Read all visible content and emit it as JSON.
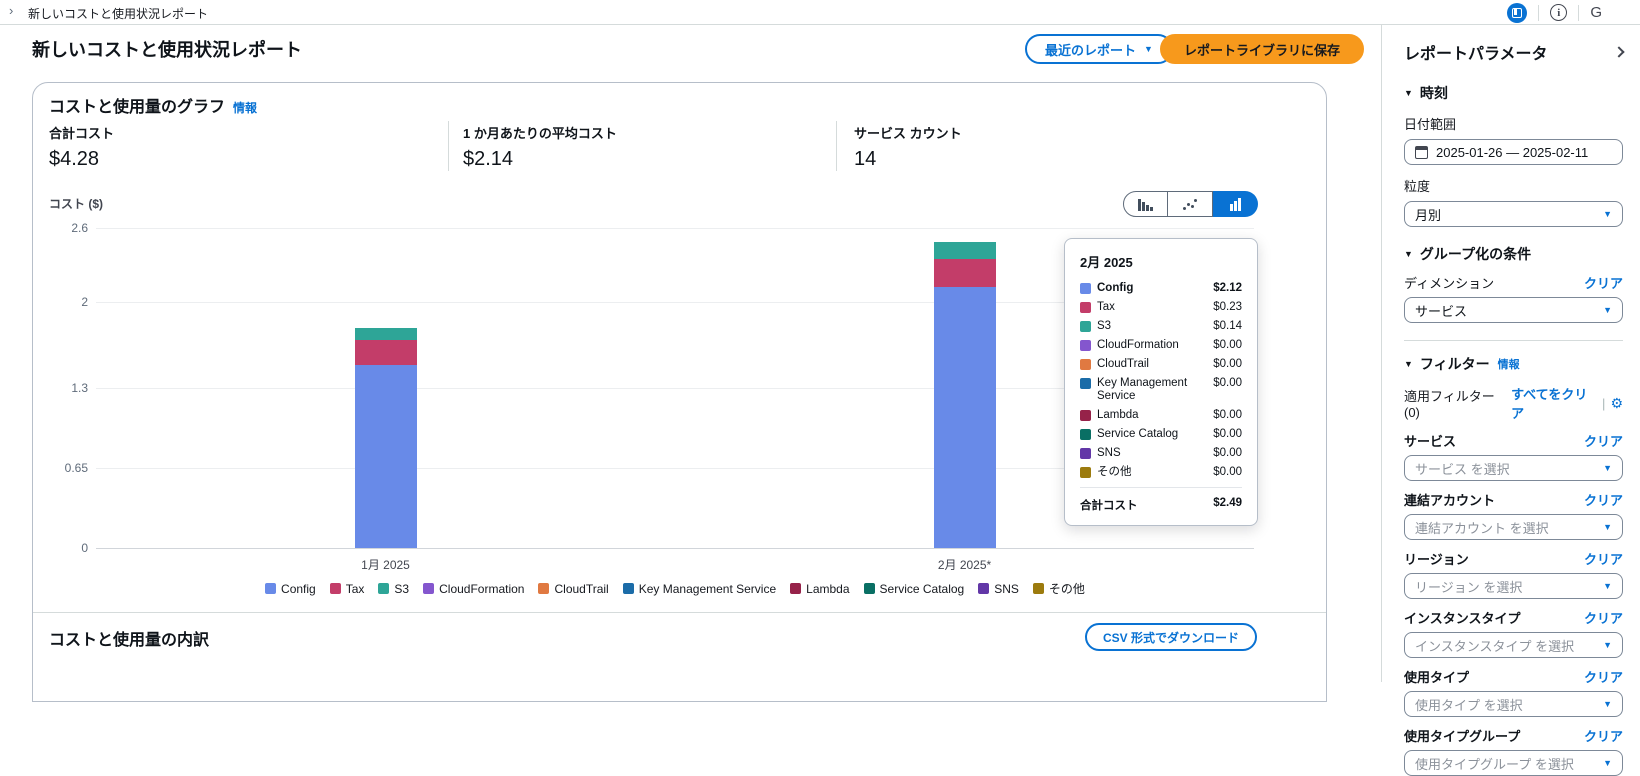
{
  "topbar": {
    "breadcrumb": "新しいコストと使用状況レポート",
    "icons": [
      "panel-toggle-icon",
      "info-icon",
      "globe-icon"
    ]
  },
  "header": {
    "title": "新しいコストと使用状況レポート",
    "recent_reports_button": "最近のレポート",
    "save_button": "レポートライブラリに保存"
  },
  "chart_card": {
    "title": "コストと使用量のグラフ",
    "info_link": "情報",
    "metrics": [
      {
        "label": "合計コスト",
        "value": "$4.28"
      },
      {
        "label": "1 か月あたりの平均コスト",
        "value": "$2.14"
      },
      {
        "label": "サービス カウント",
        "value": "14"
      }
    ],
    "axis_title": "コスト ($)",
    "chart_type_toggle": [
      "bar-chart-icon",
      "line-chart-icon",
      "stacked-bar-chart-icon"
    ],
    "selected_chart_type": "stacked-bar"
  },
  "chart_data": {
    "type": "bar",
    "stacked": true,
    "title": "コストと使用量のグラフ",
    "ylabel": "コスト ($)",
    "categories": [
      "1月 2025",
      "2月 2025*"
    ],
    "ylim": [
      0,
      2.6
    ],
    "grid": true,
    "legend_position": "bottom",
    "y_ticks": [
      {
        "v": 0,
        "label": "0"
      },
      {
        "v": 0.65,
        "label": "0.65"
      },
      {
        "v": 1.3,
        "label": "1.3"
      },
      {
        "v": 2,
        "label": "2"
      },
      {
        "v": 2.6,
        "label": "2.6"
      }
    ],
    "series": [
      {
        "name": "Config",
        "color": "#688ae8",
        "values": [
          1.49,
          2.12
        ]
      },
      {
        "name": "Tax",
        "color": "#c33d69",
        "values": [
          0.2,
          0.23
        ]
      },
      {
        "name": "S3",
        "color": "#2ea597",
        "values": [
          0.1,
          0.14
        ]
      },
      {
        "name": "CloudFormation",
        "color": "#8456ce",
        "values": [
          0,
          0
        ]
      },
      {
        "name": "CloudTrail",
        "color": "#e07941",
        "values": [
          0,
          0
        ]
      },
      {
        "name": "Key Management Service",
        "color": "#1b6ca8",
        "values": [
          0,
          0
        ]
      },
      {
        "name": "Lambda",
        "color": "#962249",
        "values": [
          0,
          0
        ]
      },
      {
        "name": "Service Catalog",
        "color": "#096f64",
        "values": [
          0,
          0
        ]
      },
      {
        "name": "SNS",
        "color": "#6237a7",
        "values": [
          0,
          0
        ]
      },
      {
        "name": "その他",
        "color": "#9c7b0e",
        "values": [
          0,
          0
        ]
      }
    ]
  },
  "tooltip": {
    "title": "2月 2025",
    "rows": [
      {
        "name": "Config",
        "value": "$2.12",
        "bold": true
      },
      {
        "name": "Tax",
        "value": "$0.23",
        "bold": false
      },
      {
        "name": "S3",
        "value": "$0.14",
        "bold": false
      },
      {
        "name": "CloudFormation",
        "value": "$0.00",
        "bold": false
      },
      {
        "name": "CloudTrail",
        "value": "$0.00",
        "bold": false
      },
      {
        "name": "Key Management Service",
        "value": "$0.00",
        "bold": false
      },
      {
        "name": "Lambda",
        "value": "$0.00",
        "bold": false
      },
      {
        "name": "Service Catalog",
        "value": "$0.00",
        "bold": false
      },
      {
        "name": "SNS",
        "value": "$0.00",
        "bold": false
      },
      {
        "name": "その他",
        "value": "$0.00",
        "bold": false
      }
    ],
    "total_label": "合計コスト",
    "total_value": "$2.49"
  },
  "breakdown": {
    "title": "コストと使用量の内訳",
    "csv_button": "CSV 形式でダウンロード"
  },
  "sidebar": {
    "title": "レポートパラメータ",
    "time_section": "時刻",
    "date_range_label": "日付範囲",
    "date_range_value": "2025-01-26 — 2025-02-11",
    "granularity_label": "粒度",
    "granularity_value": "月別",
    "group_section": "グループ化の条件",
    "dimension_label": "ディメンション",
    "dimension_value": "サービス",
    "clear_label": "クリア",
    "filter_section": "フィルター",
    "filter_info_link": "情報",
    "applied_filters": "適用フィルター (0)",
    "clear_all_label": "すべてをクリア",
    "filters": [
      {
        "label": "サービス",
        "placeholder": "サービス を選択"
      },
      {
        "label": "連結アカウント",
        "placeholder": "連結アカウント を選択"
      },
      {
        "label": "リージョン",
        "placeholder": "リージョン を選択"
      },
      {
        "label": "インスタンスタイプ",
        "placeholder": "インスタンスタイプ を選択"
      },
      {
        "label": "使用タイプ",
        "placeholder": "使用タイプ を選択"
      },
      {
        "label": "使用タイプグループ",
        "placeholder": "使用タイプグループ を選択"
      }
    ]
  },
  "colors": {
    "accent_blue": "#0972d3",
    "primary_orange": "#f7991c"
  }
}
